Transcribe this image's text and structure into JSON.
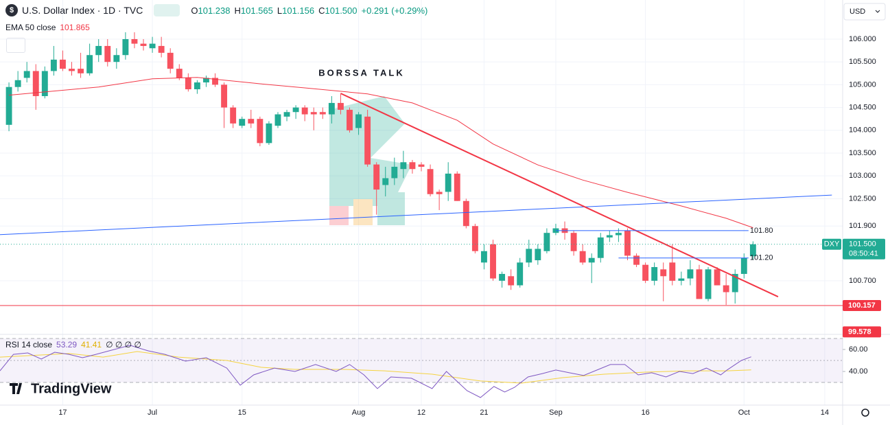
{
  "chart_data": {
    "type": "candlestick",
    "title": "U.S. Dollar Index · 1D · TVC",
    "quote": [
      {
        "prefix": "O",
        "text": "101.238"
      },
      {
        "prefix": "H",
        "text": "101.565"
      },
      {
        "prefix": "L",
        "text": "101.156"
      },
      {
        "prefix": "C",
        "text": "101.500"
      }
    ],
    "change": "+0.291 (+0.29%)",
    "currency": "USD",
    "watermark": "BORSSA TALK",
    "brand": "TradingView",
    "up_color": "#22ab94",
    "down_color": "#f7525f",
    "grid": true,
    "xlim": [
      -1,
      93
    ],
    "ylim": [
      99.524,
      106.858
    ],
    "xticks": [
      {
        "value": 6,
        "label": "17"
      },
      {
        "value": 16,
        "label": "Jul"
      },
      {
        "value": 26,
        "label": "15"
      },
      {
        "value": 39,
        "label": "Aug"
      },
      {
        "value": 46,
        "label": "12"
      },
      {
        "value": 53,
        "label": "21"
      },
      {
        "value": 61,
        "label": "Sep"
      },
      {
        "value": 71,
        "label": "16"
      },
      {
        "value": 82,
        "label": "Oct"
      },
      {
        "value": 91,
        "label": "14"
      }
    ],
    "yticks": [
      {
        "value": 106,
        "label": "106.000"
      },
      {
        "value": 105.5,
        "label": "105.500"
      },
      {
        "value": 105,
        "label": "105.000"
      },
      {
        "value": 104.5,
        "label": "104.500"
      },
      {
        "value": 104,
        "label": "104.000"
      },
      {
        "value": 103.5,
        "label": "103.500"
      },
      {
        "value": 103,
        "label": "103.000"
      },
      {
        "value": 102.5,
        "label": "102.500"
      },
      {
        "value": 101.9,
        "label": "101.900"
      },
      {
        "value": 100.7,
        "label": "100.700"
      }
    ],
    "candles": {
      "open": [
        104.12,
        104.95,
        105.15,
        105.3,
        104.75,
        105.3,
        105.55,
        105.35,
        105.35,
        105.25,
        105.65,
        105.85,
        105.5,
        105.65,
        106.0,
        105.9,
        105.8,
        105.85,
        105.7,
        105.35,
        105.15,
        104.9,
        105.05,
        105.15,
        105.0,
        104.5,
        104.1,
        104.25,
        104.25,
        103.72,
        104.1,
        104.3,
        104.4,
        104.5,
        104.4,
        104.4,
        104.35,
        104.6,
        104.45,
        104.05,
        104.3,
        103.25,
        102.8,
        102.95,
        103.15,
        103.3,
        103.25,
        103.15,
        102.65,
        102.65,
        103.05,
        102.45,
        101.9,
        101.1,
        101.5,
        100.7,
        100.8,
        100.6,
        101.1,
        101.15,
        101.35,
        101.75,
        101.85,
        101.75,
        101.35,
        101.1,
        101.2,
        101.65,
        101.7,
        101.8,
        101.25,
        101.05,
        100.7,
        100.95,
        101.1,
        100.7,
        100.75,
        100.95,
        100.3,
        100.95,
        100.6,
        100.45,
        100.85,
        101.238
      ],
      "high": [
        105.05,
        105.3,
        105.5,
        105.45,
        105.4,
        105.85,
        105.75,
        105.5,
        105.7,
        105.9,
        106.0,
        106.0,
        105.8,
        106.15,
        106.15,
        106.0,
        106.05,
        106.05,
        105.8,
        105.45,
        105.25,
        105.1,
        105.2,
        105.25,
        105.05,
        104.55,
        104.3,
        104.45,
        104.3,
        104.2,
        104.4,
        104.45,
        104.55,
        104.55,
        104.5,
        104.5,
        104.75,
        104.8,
        104.5,
        104.4,
        104.45,
        103.3,
        103.2,
        103.4,
        103.55,
        103.35,
        103.3,
        103.25,
        102.7,
        103.3,
        103.1,
        102.5,
        101.95,
        101.5,
        101.6,
        100.9,
        100.95,
        101.2,
        101.6,
        101.5,
        101.85,
        101.95,
        102.0,
        101.8,
        101.5,
        101.3,
        101.75,
        101.8,
        101.85,
        101.85,
        101.3,
        101.1,
        101.1,
        101.1,
        101.5,
        100.9,
        101.15,
        101.05,
        101.0,
        101.0,
        100.85,
        100.95,
        101.3,
        101.565
      ],
      "low": [
        103.98,
        104.85,
        105.05,
        104.45,
        104.7,
        105.2,
        105.3,
        105.2,
        105.15,
        105.2,
        105.5,
        105.4,
        105.35,
        105.55,
        105.8,
        105.75,
        105.7,
        105.6,
        105.25,
        105.1,
        104.85,
        104.8,
        104.95,
        104.95,
        104.05,
        104.05,
        104.05,
        104.05,
        103.65,
        103.68,
        104.05,
        104.2,
        104.25,
        104.2,
        104.0,
        104.25,
        104.15,
        104.35,
        103.95,
        103.9,
        103.2,
        102.15,
        102.55,
        102.8,
        102.95,
        103.05,
        103.1,
        102.55,
        102.25,
        102.45,
        102.45,
        101.85,
        101.3,
        100.95,
        100.7,
        100.55,
        100.5,
        100.55,
        101.0,
        101.05,
        101.3,
        101.7,
        101.6,
        101.25,
        101.05,
        100.65,
        101.1,
        101.55,
        101.55,
        101.15,
        101.0,
        100.65,
        100.6,
        100.25,
        100.6,
        100.6,
        100.6,
        100.3,
        100.25,
        100.6,
        100.17,
        100.2,
        100.75,
        101.156
      ],
      "close": [
        104.95,
        105.1,
        105.3,
        104.75,
        105.3,
        105.55,
        105.35,
        105.3,
        105.25,
        105.65,
        105.85,
        105.5,
        105.65,
        106.0,
        105.9,
        105.85,
        105.9,
        105.7,
        105.35,
        105.15,
        104.9,
        105.05,
        105.15,
        105.0,
        104.5,
        104.15,
        104.25,
        104.15,
        103.72,
        104.15,
        104.35,
        104.4,
        104.5,
        104.35,
        104.35,
        104.35,
        104.6,
        104.45,
        104.0,
        104.35,
        103.25,
        102.7,
        102.95,
        103.2,
        103.3,
        103.15,
        103.2,
        102.6,
        102.6,
        103.05,
        102.45,
        101.9,
        101.35,
        101.35,
        100.75,
        100.85,
        100.6,
        101.1,
        101.4,
        101.4,
        101.75,
        101.85,
        101.75,
        101.35,
        101.1,
        101.2,
        101.65,
        101.7,
        101.75,
        101.25,
        101.05,
        100.7,
        101.0,
        100.8,
        100.7,
        100.75,
        100.95,
        100.3,
        100.95,
        100.6,
        100.45,
        100.85,
        101.2,
        101.5
      ]
    },
    "ema": {
      "name": "EMA 50 close",
      "color": "#f23645",
      "x": [
        0,
        10,
        16,
        21,
        28,
        33,
        40,
        45,
        50,
        54,
        59,
        64,
        69,
        75,
        80,
        83
      ],
      "values": [
        104.77,
        104.95,
        105.13,
        105.16,
        105.02,
        104.93,
        104.8,
        104.6,
        104.22,
        103.7,
        103.24,
        102.91,
        102.64,
        102.34,
        102.07,
        101.865
      ]
    },
    "trendlines": [
      {
        "color": "#2962ff",
        "x": [
          -1,
          91.8
        ],
        "values": [
          101.71,
          102.58
        ]
      },
      {
        "color": "#f23645",
        "x": [
          37,
          85.8
        ],
        "values": [
          104.81,
          100.35
        ]
      }
    ],
    "levels": [
      {
        "value": 101.8,
        "label": "101.80",
        "from": 61,
        "to": 82.5,
        "color": "#2962ff"
      },
      {
        "value": 101.2,
        "label": "101.20",
        "from": 68,
        "to": 82.5,
        "color": "#2962ff"
      }
    ],
    "support": {
      "value": 100.157,
      "label": "100.157",
      "color": "#f23645"
    },
    "low_marker": {
      "value": 99.578,
      "label": "99.578",
      "color": "#f23645"
    },
    "last_price": {
      "symbol": "DXY",
      "value": 101.5,
      "label": "101.500",
      "timer": "08:50:41",
      "color": "#22ab94"
    },
    "rsi": {
      "name": "RSI 14 close",
      "extra": "∅ ∅ ∅ ∅",
      "color": "#7e57c2",
      "ma_color": "#f5d33f",
      "ylim": [
        9.4,
        73.75
      ],
      "bands": [
        30,
        50,
        70
      ],
      "yticks": [
        {
          "value": 60,
          "label": "60.00"
        },
        {
          "value": 40,
          "label": "40.00"
        }
      ],
      "x": [
        -1,
        0.5,
        2.1,
        3.6,
        5.1,
        6.7,
        8.2,
        9.7,
        11.2,
        13.5,
        15.5,
        17.4,
        19.7,
        22.0,
        24.3,
        25.8,
        27.3,
        29.6,
        31.9,
        34.2,
        36.5,
        38.0,
        39.6,
        41.1,
        42.6,
        44.9,
        47.2,
        48.8,
        51.1,
        52.6,
        54.1,
        55.3,
        56.4,
        57.9,
        59.5,
        61.0,
        62.5,
        64.1,
        65.6,
        67.1,
        68.7,
        70.2,
        71.7,
        73.3,
        74.8,
        76.3,
        77.8,
        79.4,
        80.1,
        81.7,
        82.8
      ],
      "values": [
        40.6,
        55.6,
        56.9,
        51.3,
        57.5,
        55.6,
        52.5,
        55.6,
        58.8,
        63.8,
        58.8,
        55.6,
        49.4,
        52.5,
        43.1,
        27.5,
        36.9,
        43.1,
        40.0,
        46.3,
        40.0,
        46.3,
        36.9,
        24.4,
        35.0,
        33.8,
        24.4,
        40.0,
        22.5,
        16.3,
        26.3,
        21.3,
        25.6,
        35.0,
        38.1,
        41.3,
        38.8,
        36.3,
        41.3,
        46.3,
        46.3,
        36.9,
        38.8,
        35.0,
        40.0,
        38.1,
        43.1,
        36.9,
        41.3,
        50.0,
        53.29
      ],
      "ma_x": [
        -1,
        6.7,
        10.5,
        14.3,
        18.9,
        24.3,
        28.1,
        31.9,
        37.3,
        41.9,
        47.2,
        52.6,
        57.2,
        61.8,
        66.4,
        71.0,
        75.6,
        80.1,
        82.8
      ],
      "ma_values": [
        53.1,
        56.3,
        53.1,
        58.1,
        53.1,
        50.0,
        43.8,
        41.9,
        41.9,
        40.6,
        37.5,
        31.3,
        29.4,
        34.4,
        37.5,
        39.4,
        40.6,
        40.6,
        41.41
      ]
    }
  }
}
